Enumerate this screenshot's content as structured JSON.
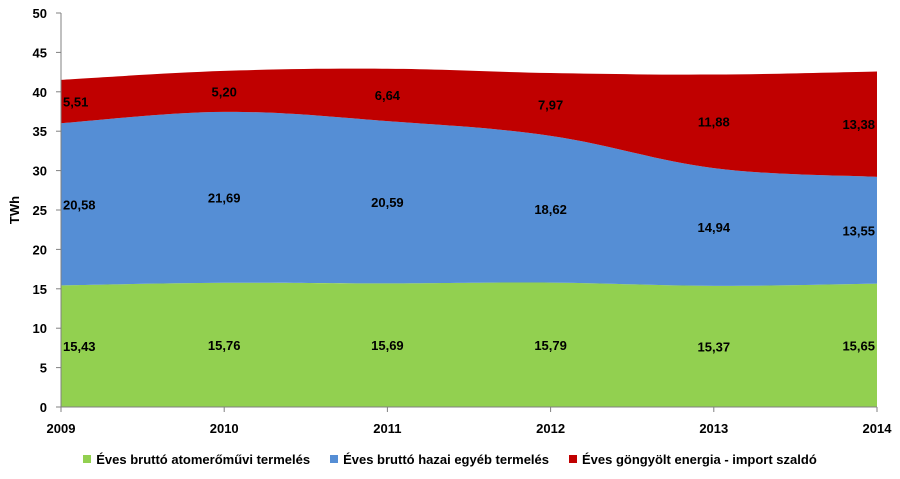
{
  "chart_data": {
    "type": "area",
    "stacked": true,
    "x": [
      "2009",
      "2010",
      "2011",
      "2012",
      "2013",
      "2014"
    ],
    "ylabel": "TWh",
    "ylim": [
      0,
      50
    ],
    "yticks": [
      "0",
      "5",
      "10",
      "15",
      "20",
      "25",
      "30",
      "35",
      "40",
      "45",
      "50"
    ],
    "grid": false,
    "legend_position": "bottom",
    "series": [
      {
        "name": "Éves bruttó atomerőművi termelés",
        "color": "#92D050",
        "values": [
          15.43,
          15.76,
          15.69,
          15.79,
          15.37,
          15.65
        ],
        "labels": [
          "15,43",
          "15,76",
          "15,69",
          "15,79",
          "15,37",
          "15,65"
        ]
      },
      {
        "name": "Éves bruttó hazai egyéb termelés",
        "color": "#558ED5",
        "values": [
          20.58,
          21.69,
          20.59,
          18.62,
          14.94,
          13.55
        ],
        "labels": [
          "20,58",
          "21,69",
          "20,59",
          "18,62",
          "14,94",
          "13,55"
        ]
      },
      {
        "name": "Éves göngyölt energia - import szaldó",
        "color": "#C00000",
        "values": [
          5.51,
          5.2,
          6.64,
          7.97,
          11.88,
          13.38
        ],
        "labels": [
          "5,51",
          "5,20",
          "6,64",
          "7,97",
          "11,88",
          "13,38"
        ]
      }
    ]
  }
}
